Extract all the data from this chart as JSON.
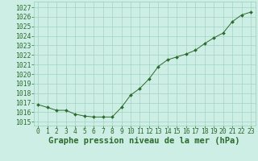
{
  "hours": [
    0,
    1,
    2,
    3,
    4,
    5,
    6,
    7,
    8,
    9,
    10,
    11,
    12,
    13,
    14,
    15,
    16,
    17,
    18,
    19,
    20,
    21,
    22,
    23
  ],
  "pressure": [
    1016.8,
    1016.5,
    1016.2,
    1016.2,
    1015.8,
    1015.6,
    1015.5,
    1015.5,
    1015.5,
    1016.5,
    1017.8,
    1018.5,
    1019.5,
    1020.8,
    1021.5,
    1021.8,
    1022.1,
    1022.5,
    1023.2,
    1023.8,
    1024.3,
    1025.5,
    1026.2,
    1026.5
  ],
  "line_color": "#2d6a2d",
  "marker": "D",
  "marker_size": 2.0,
  "bg_color": "#cceee4",
  "grid_color": "#99ccbb",
  "title": "Graphe pression niveau de la mer (hPa)",
  "ylabel_ticks": [
    1015,
    1016,
    1017,
    1018,
    1019,
    1020,
    1021,
    1022,
    1023,
    1024,
    1025,
    1026,
    1027
  ],
  "xlim": [
    -0.5,
    23.5
  ],
  "ylim": [
    1014.6,
    1027.6
  ],
  "title_fontsize": 7.5,
  "tick_fontsize": 5.8,
  "linewidth": 0.7
}
